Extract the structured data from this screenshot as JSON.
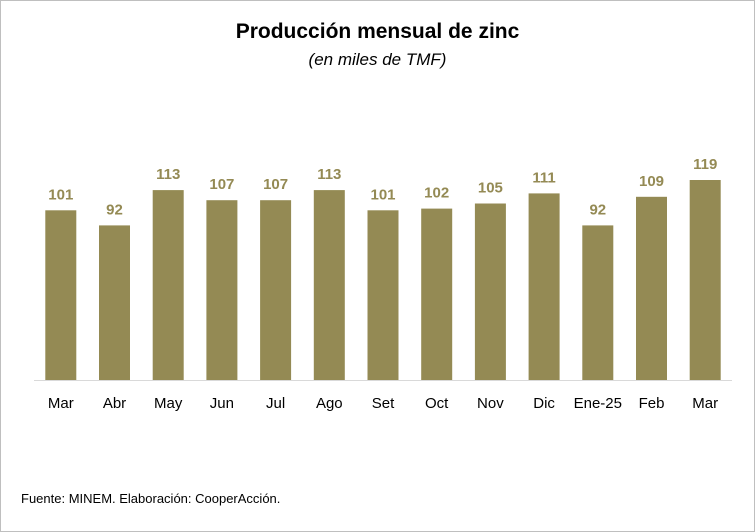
{
  "chart_data": {
    "type": "bar",
    "title": "Producción  mensual de zinc",
    "subtitle": "(en miles de TMF)",
    "categories": [
      "Mar",
      "Abr",
      "May",
      "Jun",
      "Jul",
      "Ago",
      "Set",
      "Oct",
      "Nov",
      "Dic",
      "Ene-25",
      "Feb",
      "Mar"
    ],
    "values": [
      101,
      92,
      113,
      107,
      107,
      113,
      101,
      102,
      105,
      111,
      92,
      109,
      119
    ],
    "xlabel": "",
    "ylabel": "",
    "ylim": [
      0,
      119
    ],
    "grid": false,
    "legend": "none",
    "bar_color": "#948a54",
    "label_color": "#948a54",
    "source": "Fuente: MINEM. Elaboración: CooperAcción."
  }
}
